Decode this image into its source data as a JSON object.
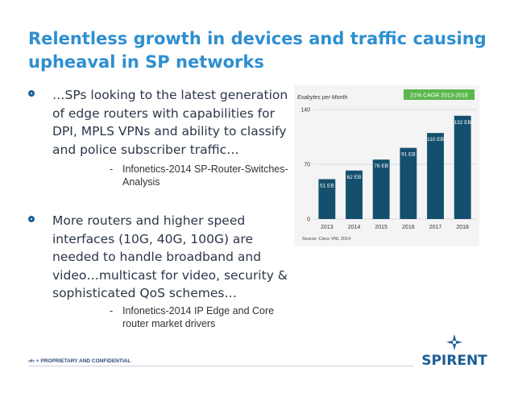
{
  "slide": {
    "title": "Relentless growth in devices and traffic causing upheaval in SP networks",
    "bullets": [
      {
        "text": "…SPs looking to the latest generation of edge routers with capabilities for DPI, MPLS VPNs and ability to classify and police subscriber traffic…",
        "sub_dash": "-",
        "sub_text": "Infonetics-2014 SP-Router-Switches-Analysis"
      },
      {
        "text": "More routers and higher speed interfaces (10G, 40G, 100G) are needed to handle broadband and video…multicast for video, security & sophisticated QoS schemes…",
        "sub_dash": "-",
        "sub_text": "Infonetics-2014 IP Edge and Core router market drivers"
      }
    ],
    "footer": {
      "page": "‹#›",
      "proprietary": "+ PROPRIETARY AND CONFIDENTIAL"
    },
    "logo_text": "SPIRENT"
  },
  "colors": {
    "title": "#2e8fd0",
    "bar": "#14506e",
    "cagr_badge": "#5bb84c",
    "logo": "#1b5f96"
  },
  "chart_data": {
    "type": "bar",
    "categories": [
      "2013",
      "2014",
      "2015",
      "2016",
      "2017",
      "2018"
    ],
    "values": [
      51,
      62,
      76,
      91,
      110,
      132
    ],
    "data_labels": [
      "51 EB",
      "62 EB",
      "76 EB",
      "91 EB",
      "110 EB",
      "132 EB"
    ],
    "ylabel": "Exabytes per Month",
    "ylim": [
      0,
      140
    ],
    "yticks": [
      "0",
      "70",
      "140"
    ],
    "annotation": "21% CAGR 2013-2018",
    "source": "Source: Cisco VNI, 2014",
    "grid": true
  }
}
